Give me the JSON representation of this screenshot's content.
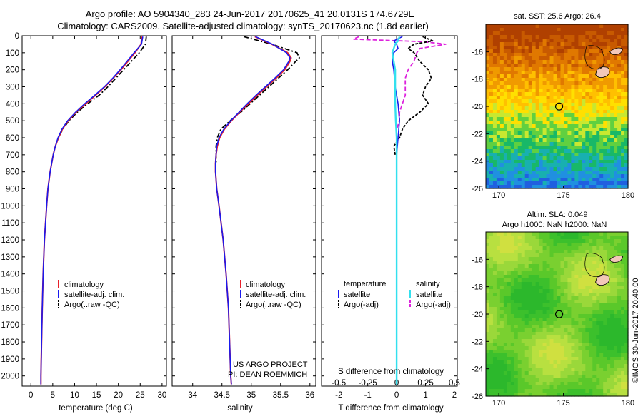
{
  "header": {
    "line1": "Argo profile: AO 5904340_283 24-Jun-2017 20170625_41 20.0131S 174.6729E",
    "line2": "Climatology: CARS2009. Satellite-adjusted climatology: synTS_20170623.nc (1.8d earlier)"
  },
  "colors": {
    "climatology": "#e8202a",
    "satellite": "#1a1aee",
    "argo": "#000000",
    "sat_salinity": "#33e0ee",
    "argo_salinity": "#dd22dd"
  },
  "legend_t": {
    "climatology": "climatology",
    "satellite": "satellite-adj. clim.",
    "argo": "Argo(..raw -QC)"
  },
  "legend_s": {
    "climatology": "climatology",
    "satellite": "satellite-adj. clim.",
    "argo": "Argo(..raw -QC)"
  },
  "legend_d": {
    "temperature_title": "temperature",
    "salinity_title": "salinity",
    "sat_t": "satellite",
    "argo_t": "Argo(-adj)",
    "sat_s": "satellite",
    "argo_s": "Argo(-adj)"
  },
  "credits": {
    "project": "US ARGO PROJECT",
    "pi": "PI: DEAN ROEMMICH"
  },
  "map1": {
    "title": "sat. SST: 25.6 Argo: 26.4"
  },
  "map2": {
    "title_line1": "Altim. SLA: 0.049",
    "title_line2": "Argo h1000: NaN h2000: NaN"
  },
  "imos_stamp": "©IMOS 30-Jun-2017 20:40:00",
  "chart_data": [
    {
      "type": "line",
      "title": "",
      "xlabel": "temperature (deg C)",
      "ylabel": "",
      "xlim": [
        -2,
        31
      ],
      "ylim": [
        2060,
        0
      ],
      "xticks": [
        "0",
        "5",
        "10",
        "15",
        "20",
        "25",
        "30"
      ],
      "yticks": [
        "0",
        "100",
        "200",
        "300",
        "400",
        "500",
        "600",
        "700",
        "800",
        "900",
        "1000",
        "1100",
        "1200",
        "1300",
        "1400",
        "1500",
        "1600",
        "1700",
        "1800",
        "1900",
        "2000"
      ],
      "depth": [
        5,
        50,
        100,
        150,
        200,
        250,
        300,
        350,
        400,
        450,
        500,
        550,
        600,
        650,
        700,
        800,
        900,
        1000,
        1200,
        1400,
        1600,
        1800,
        2000,
        2050
      ],
      "series": [
        {
          "name": "climatology",
          "values": [
            25.4,
            25.2,
            23.8,
            22.2,
            20.6,
            18.8,
            16.9,
            14.8,
            12.5,
            10.3,
            8.5,
            7.2,
            6.3,
            5.6,
            5.1,
            4.4,
            3.9,
            3.6,
            3.1,
            2.8,
            2.6,
            2.45,
            2.3,
            2.3
          ]
        },
        {
          "name": "satellite-adj. clim.",
          "values": [
            25.6,
            25.3,
            23.6,
            22.0,
            20.4,
            18.7,
            16.8,
            14.6,
            12.3,
            10.2,
            8.4,
            7.1,
            6.2,
            5.6,
            5.1,
            4.4,
            3.9,
            3.6,
            3.1,
            2.8,
            2.6,
            2.45,
            2.3,
            2.3
          ]
        },
        {
          "name": "Argo(..raw -QC)",
          "values": [
            26.4,
            26.2,
            24.8,
            23.0,
            21.2,
            19.4,
            17.6,
            15.6,
            13.0,
            10.6,
            8.7,
            7.3,
            6.3
          ]
        }
      ]
    },
    {
      "type": "line",
      "title": "",
      "xlabel": "salinity",
      "ylabel": "",
      "xlim": [
        33.65,
        36.1
      ],
      "ylim": [
        2060,
        0
      ],
      "xticks": [
        "34",
        "34.5",
        "35",
        "35.5",
        "36"
      ],
      "depth": [
        5,
        50,
        100,
        130,
        150,
        200,
        250,
        300,
        350,
        400,
        450,
        500,
        550,
        600,
        650,
        700,
        750,
        800,
        900,
        1000,
        1200,
        1400,
        1600,
        1800,
        2000,
        2050
      ],
      "series": [
        {
          "name": "climatology",
          "values": [
            35.06,
            35.35,
            35.62,
            35.68,
            35.66,
            35.57,
            35.42,
            35.26,
            35.1,
            34.95,
            34.8,
            34.66,
            34.54,
            34.46,
            34.42,
            34.4,
            34.39,
            34.39,
            34.41,
            34.45,
            34.52,
            34.57,
            34.61,
            34.63,
            34.65,
            34.66
          ]
        },
        {
          "name": "satellite-adj. clim.",
          "values": [
            35.07,
            35.36,
            35.6,
            35.66,
            35.64,
            35.55,
            35.4,
            35.24,
            35.08,
            34.93,
            34.79,
            34.65,
            34.53,
            34.45,
            34.41,
            34.4,
            34.39,
            34.39,
            34.41,
            34.45,
            34.52,
            34.57,
            34.61,
            34.63,
            34.65,
            34.66
          ]
        },
        {
          "name": "Argo(..raw -QC)",
          "values": [
            34.87,
            35.35,
            35.78,
            35.82,
            35.76,
            35.62,
            35.46,
            35.3,
            35.14,
            34.98,
            34.82,
            34.64,
            34.48,
            34.42,
            34.4,
            34.4,
            34.4
          ]
        }
      ]
    },
    {
      "type": "line",
      "title": "",
      "xlabel": "T difference from climatology",
      "x2label": "S difference from climatology",
      "ylabel": "",
      "xlim": [
        -2.6,
        2.1
      ],
      "ylim": [
        2060,
        0
      ],
      "xticks": [
        "-2",
        "-1",
        "0",
        "1",
        "2"
      ],
      "x2ticks": [
        "-0.5",
        "-0.25",
        "0",
        "0.25",
        "0.5"
      ],
      "depth": [
        5,
        30,
        50,
        75,
        100,
        150,
        200,
        300,
        400,
        500,
        600,
        700,
        800,
        900,
        1000,
        1200,
        1400,
        1600,
        1800,
        2000,
        2050
      ],
      "series": [
        {
          "name": "temperature satellite",
          "values": [
            0.2,
            -0.1,
            0.0,
            0.05,
            -0.1,
            -0.15,
            -0.1,
            -0.05,
            0.05,
            0.1,
            0.05,
            0.0,
            0.0,
            0.0,
            0.0,
            0.0,
            0.0,
            0.0,
            0.0,
            0.0,
            0.0
          ]
        },
        {
          "name": "salinity satellite",
          "values": [
            0.1,
            0.05,
            -0.05,
            -0.1,
            -0.15,
            -0.1,
            -0.05,
            -0.05,
            -0.05,
            -0.03,
            0.0,
            0.0,
            0.0,
            0.0,
            0.0,
            0.0,
            0.0,
            0.0,
            0.0,
            0.0,
            0.0
          ]
        },
        {
          "name": "temperature Argo(-adj)",
          "depth": [
            5,
            30,
            50,
            75,
            100,
            150,
            200,
            250,
            300,
            350,
            400,
            450,
            500,
            550,
            600,
            650,
            700
          ],
          "values": [
            0.9,
            1.25,
            0.6,
            0.4,
            0.6,
            0.8,
            1.1,
            1.2,
            1.0,
            0.9,
            1.1,
            0.8,
            0.4,
            0.2,
            0.1,
            -0.1,
            -0.05
          ]
        },
        {
          "name": "salinity Argo(-adj)",
          "depth": [
            5,
            20,
            35,
            50,
            75,
            100,
            150,
            200,
            250,
            300,
            350,
            400,
            450,
            500,
            550,
            600
          ],
          "values": [
            -1.3,
            -1.5,
            0.9,
            1.7,
            0.8,
            0.7,
            0.6,
            0.4,
            0.3,
            0.3,
            0.3,
            0.2,
            0.1,
            0.1,
            0.0,
            0.0
          ]
        }
      ]
    },
    {
      "type": "heatmap",
      "title": "sat. SST: 25.6 Argo: 26.4",
      "xlim": [
        169,
        180
      ],
      "ylim": [
        -26,
        -14
      ],
      "xticks": [
        "170",
        "175",
        "180"
      ],
      "yticks": [
        "-16",
        "-18",
        "-20",
        "-22",
        "-24",
        "-26"
      ],
      "marker": {
        "lon": 174.67,
        "lat": -20.01
      }
    },
    {
      "type": "heatmap",
      "title": "Altim. SLA: 0.049",
      "subtitle": "Argo h1000: NaN h2000: NaN",
      "xlim": [
        169,
        180
      ],
      "ylim": [
        -26,
        -14
      ],
      "xticks": [
        "170",
        "175",
        "180"
      ],
      "yticks": [
        "-16",
        "-18",
        "-20",
        "-22",
        "-24",
        "-26"
      ],
      "marker": {
        "lon": 174.67,
        "lat": -20.01
      }
    }
  ]
}
